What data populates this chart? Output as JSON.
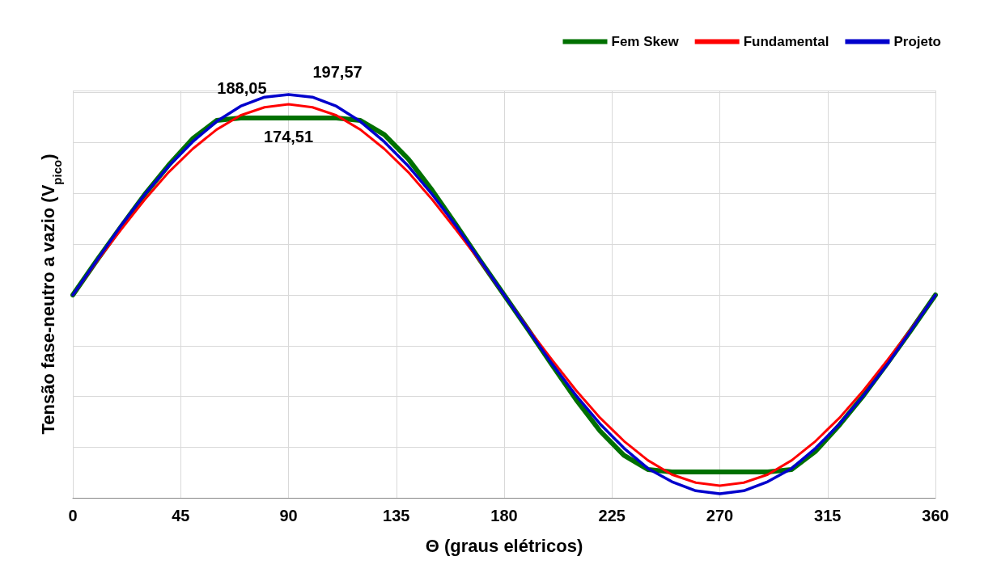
{
  "chart_data": {
    "type": "line",
    "xlabel": "Θ (graus elétricos)",
    "ylabel": "Tensão fase-neutro a vazio (V$_{pico}$)",
    "x": [
      0,
      10,
      20,
      30,
      40,
      50,
      60,
      70,
      80,
      90,
      100,
      110,
      120,
      130,
      140,
      150,
      160,
      170,
      180,
      190,
      200,
      210,
      220,
      230,
      240,
      250,
      260,
      270,
      280,
      290,
      300,
      310,
      320,
      330,
      340,
      350,
      360
    ],
    "xlim": [
      0,
      360
    ],
    "xticks": [
      0,
      45,
      90,
      135,
      180,
      225,
      270,
      315,
      360
    ],
    "grid": true,
    "tick_labels": "x",
    "legend": "top right",
    "marker": "none",
    "line_style": "solid",
    "series": [
      {
        "name": "Fem Skew",
        "color": "#007000",
        "values": [
          0,
          34,
          67,
          99,
          128,
          154,
          172,
          174.51,
          174.51,
          174.51,
          174.51,
          174.51,
          172,
          158,
          134,
          103,
          69,
          34,
          0,
          -34,
          -69,
          -103,
          -134,
          -158,
          -172,
          -174.51,
          -174.51,
          -174.51,
          -174.51,
          -174.51,
          -172,
          -154,
          -128,
          -99,
          -67,
          -34,
          0
        ],
        "value_labels": [
          null,
          null,
          null,
          null,
          null,
          null,
          null,
          null,
          null,
          "174,51",
          null,
          null,
          null,
          null,
          null,
          null,
          null,
          null,
          null,
          null,
          null,
          null,
          null,
          null,
          null,
          null,
          null,
          null,
          null,
          null,
          null,
          null,
          null,
          null,
          null,
          null,
          null
        ]
      },
      {
        "name": "Fundamental",
        "color": "#ff0000",
        "values": [
          0,
          33,
          64,
          94,
          121,
          144,
          163,
          177,
          185,
          188.05,
          185,
          177,
          163,
          144,
          121,
          94,
          64,
          33,
          0,
          -33,
          -64,
          -94,
          -121,
          -144,
          -163,
          -177,
          -185,
          -188,
          -185,
          -177,
          -163,
          -144,
          -121,
          -94,
          -64,
          -33,
          0
        ],
        "value_labels": [
          null,
          null,
          null,
          null,
          null,
          null,
          null,
          null,
          null,
          "188,05",
          null,
          null,
          null,
          null,
          null,
          null,
          null,
          null,
          null,
          null,
          null,
          null,
          null,
          null,
          null,
          null,
          null,
          null,
          null,
          null,
          null,
          null,
          null,
          null,
          null,
          null,
          null
        ]
      },
      {
        "name": "Projeto",
        "color": "#0000cc",
        "values": [
          0,
          34,
          68,
          99,
          127,
          151,
          171,
          186,
          195,
          197.57,
          195,
          186,
          171,
          151,
          127,
          99,
          68,
          34,
          0,
          -34,
          -68,
          -99,
          -127,
          -151,
          -171,
          -184,
          -193,
          -196,
          -193,
          -184,
          -171,
          -151,
          -127,
          -99,
          -68,
          -34,
          0
        ],
        "value_labels": [
          null,
          null,
          null,
          null,
          null,
          null,
          null,
          null,
          null,
          "197,57",
          null,
          null,
          null,
          null,
          null,
          null,
          null,
          null,
          null,
          null,
          null,
          null,
          null,
          null,
          null,
          null,
          null,
          null,
          null,
          null,
          null,
          null,
          null,
          null,
          null,
          null,
          null
        ]
      }
    ]
  }
}
